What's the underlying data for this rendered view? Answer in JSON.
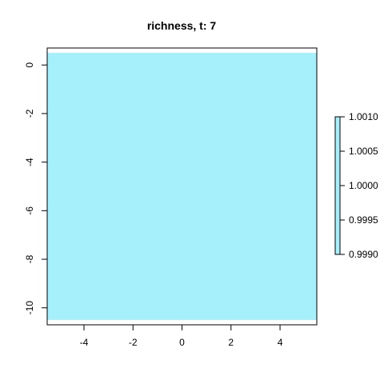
{
  "chart_data": {
    "type": "heatmap",
    "title": "richness, t: 7",
    "xlabel": "",
    "ylabel": "",
    "xlim": [
      -5.5,
      5.5
    ],
    "ylim": [
      -10.7,
      0.7
    ],
    "x_ticks": [
      -4,
      -2,
      0,
      2,
      4
    ],
    "x_tick_labels": [
      "-4",
      "-2",
      "0",
      "2",
      "4"
    ],
    "y_ticks": [
      0,
      -2,
      -4,
      -6,
      -8,
      -10
    ],
    "y_tick_labels": [
      "0",
      "-2",
      "-4",
      "-6",
      "-8",
      "-10"
    ],
    "grid": false,
    "cells": [
      {
        "x_range": [
          -5.5,
          5.5
        ],
        "y_range": [
          -10.5,
          0.5
        ],
        "value": 1.0
      }
    ],
    "colorbar": {
      "range": [
        0.999,
        1.001
      ],
      "ticks": [
        1.001,
        1.0005,
        1.0,
        0.9995,
        0.999
      ],
      "tick_labels": [
        "1.0010",
        "1.0005",
        "1.0000",
        "0.9995",
        "0.9990"
      ],
      "placement": "right"
    },
    "fill_color": "#a6f0fc"
  }
}
